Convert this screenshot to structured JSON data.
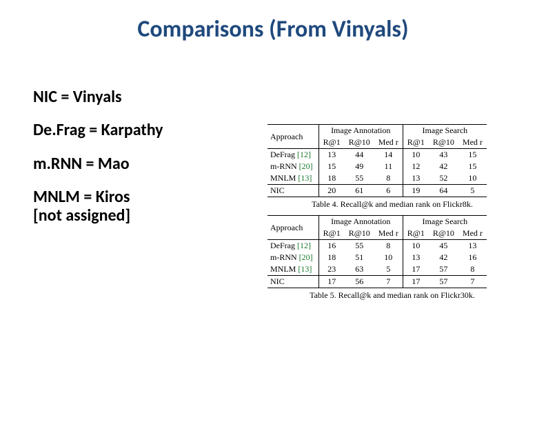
{
  "title": "Comparisons (From Vinyals)",
  "legend": {
    "items": [
      {
        "text": "NIC = Vinyals"
      },
      {
        "text": "De.Frag = Karpathy"
      },
      {
        "text": "m.RNN = Mao"
      },
      {
        "text": "MNLM = Kiros",
        "sub": "[not assigned]"
      }
    ]
  },
  "tables": {
    "common": {
      "approach_header": "Approach",
      "group1": "Image Annotation",
      "group2": "Image Search",
      "subcols": [
        "R@1",
        "R@10",
        "Med r",
        "R@1",
        "R@10",
        "Med r"
      ]
    },
    "t4": {
      "caption": "Table 4. Recall@k and median rank on Flickr8k.",
      "rows": [
        {
          "name": "DeFrag",
          "cite": "[12]",
          "vals": [
            "13",
            "44",
            "14",
            "10",
            "43",
            "15"
          ]
        },
        {
          "name": "m-RNN",
          "cite": "[20]",
          "vals": [
            "15",
            "49",
            "11",
            "12",
            "42",
            "15"
          ]
        },
        {
          "name": "MNLM",
          "cite": "[13]",
          "vals": [
            "18",
            "55",
            "8",
            "13",
            "52",
            "10"
          ]
        }
      ],
      "nic": {
        "name": "NIC",
        "vals": [
          "20",
          "61",
          "6",
          "19",
          "64",
          "5"
        ],
        "bold": [
          true,
          true,
          true,
          true,
          true,
          true
        ]
      }
    },
    "t5": {
      "caption": "Table 5. Recall@k and median rank on Flickr30k.",
      "rows": [
        {
          "name": "DeFrag",
          "cite": "[12]",
          "vals": [
            "16",
            "55",
            "8",
            "10",
            "45",
            "13"
          ]
        },
        {
          "name": "m-RNN",
          "cite": "[20]",
          "vals": [
            "18",
            "51",
            "10",
            "13",
            "42",
            "16"
          ]
        },
        {
          "name": "MNLM",
          "cite": "[13]",
          "vals": [
            "23",
            "63",
            "5",
            "17",
            "57",
            "8"
          ],
          "bold": [
            true,
            true,
            true,
            false,
            false,
            false
          ]
        }
      ],
      "nic": {
        "name": "NIC",
        "vals": [
          "17",
          "56",
          "7",
          "17",
          "57",
          "7"
        ],
        "bold": [
          false,
          false,
          false,
          true,
          true,
          true
        ]
      }
    }
  },
  "colors": {
    "title": "#1f497d",
    "cite": "#1a7a2e",
    "text": "#000000",
    "background": "#ffffff"
  },
  "typography": {
    "title_fontsize": 34,
    "legend_fontsize": 24,
    "table_fontsize": 12,
    "title_font": "Calibri",
    "table_font": "Times New Roman"
  }
}
